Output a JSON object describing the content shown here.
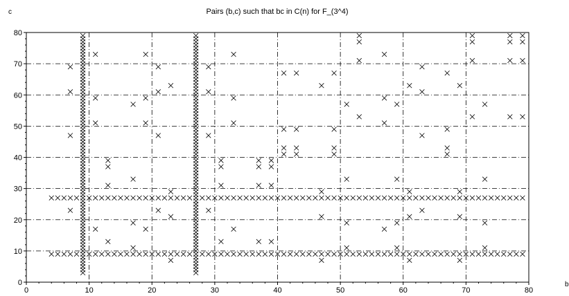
{
  "chart_data": {
    "type": "scatter",
    "title": "Pairs (b,c) such that bc in C(n) for F_(3^4)",
    "xlabel": "b",
    "ylabel": "c",
    "xlim": [
      0,
      80
    ],
    "ylim": [
      0,
      80
    ],
    "x_ticks": [
      0,
      10,
      20,
      30,
      40,
      50,
      60,
      70,
      80
    ],
    "y_ticks": [
      0,
      10,
      20,
      30,
      40,
      50,
      60,
      70,
      80
    ],
    "grid": true,
    "marker": "x",
    "colors": {
      "marker": "#000000",
      "grid": "#000000",
      "background": "#ffffff"
    },
    "full_columns": {
      "b": [
        9,
        27
      ],
      "c_from": 3,
      "c_to": 79
    },
    "full_rows": {
      "c": [
        9,
        27
      ],
      "b_from": 4,
      "b_to": 79
    },
    "points": [
      [
        7,
        69
      ],
      [
        7,
        61
      ],
      [
        7,
        47
      ],
      [
        7,
        23
      ],
      [
        11,
        73
      ],
      [
        11,
        59
      ],
      [
        11,
        51
      ],
      [
        11,
        17
      ],
      [
        13,
        39
      ],
      [
        13,
        37
      ],
      [
        13,
        31
      ],
      [
        13,
        13
      ],
      [
        17,
        57
      ],
      [
        17,
        33
      ],
      [
        17,
        19
      ],
      [
        17,
        11
      ],
      [
        19,
        73
      ],
      [
        19,
        59
      ],
      [
        19,
        51
      ],
      [
        19,
        17
      ],
      [
        21,
        69
      ],
      [
        21,
        61
      ],
      [
        21,
        47
      ],
      [
        21,
        23
      ],
      [
        23,
        63
      ],
      [
        23,
        29
      ],
      [
        23,
        21
      ],
      [
        23,
        7
      ],
      [
        29,
        69
      ],
      [
        29,
        61
      ],
      [
        29,
        47
      ],
      [
        29,
        23
      ],
      [
        31,
        39
      ],
      [
        31,
        37
      ],
      [
        31,
        31
      ],
      [
        31,
        13
      ],
      [
        33,
        73
      ],
      [
        33,
        59
      ],
      [
        33,
        51
      ],
      [
        33,
        17
      ],
      [
        37,
        39
      ],
      [
        37,
        37
      ],
      [
        37,
        31
      ],
      [
        37,
        13
      ],
      [
        39,
        39
      ],
      [
        39,
        37
      ],
      [
        39,
        31
      ],
      [
        39,
        13
      ],
      [
        41,
        67
      ],
      [
        41,
        49
      ],
      [
        41,
        43
      ],
      [
        41,
        41
      ],
      [
        43,
        67
      ],
      [
        43,
        49
      ],
      [
        43,
        43
      ],
      [
        43,
        41
      ],
      [
        47,
        63
      ],
      [
        47,
        29
      ],
      [
        47,
        21
      ],
      [
        47,
        7
      ],
      [
        49,
        67
      ],
      [
        49,
        49
      ],
      [
        49,
        43
      ],
      [
        49,
        41
      ],
      [
        51,
        57
      ],
      [
        51,
        33
      ],
      [
        51,
        19
      ],
      [
        51,
        11
      ],
      [
        53,
        79
      ],
      [
        53,
        77
      ],
      [
        53,
        71
      ],
      [
        53,
        53
      ],
      [
        57,
        73
      ],
      [
        57,
        59
      ],
      [
        57,
        51
      ],
      [
        57,
        17
      ],
      [
        59,
        57
      ],
      [
        59,
        33
      ],
      [
        59,
        19
      ],
      [
        59,
        11
      ],
      [
        61,
        63
      ],
      [
        61,
        29
      ],
      [
        61,
        21
      ],
      [
        61,
        7
      ],
      [
        63,
        69
      ],
      [
        63,
        61
      ],
      [
        63,
        47
      ],
      [
        63,
        23
      ],
      [
        67,
        67
      ],
      [
        67,
        49
      ],
      [
        67,
        43
      ],
      [
        67,
        41
      ],
      [
        69,
        63
      ],
      [
        69,
        29
      ],
      [
        69,
        21
      ],
      [
        69,
        7
      ],
      [
        71,
        79
      ],
      [
        71,
        77
      ],
      [
        71,
        71
      ],
      [
        71,
        53
      ],
      [
        73,
        57
      ],
      [
        73,
        33
      ],
      [
        73,
        19
      ],
      [
        73,
        11
      ],
      [
        77,
        79
      ],
      [
        77,
        77
      ],
      [
        77,
        71
      ],
      [
        77,
        53
      ],
      [
        79,
        79
      ],
      [
        79,
        77
      ],
      [
        79,
        71
      ],
      [
        79,
        53
      ]
    ]
  }
}
